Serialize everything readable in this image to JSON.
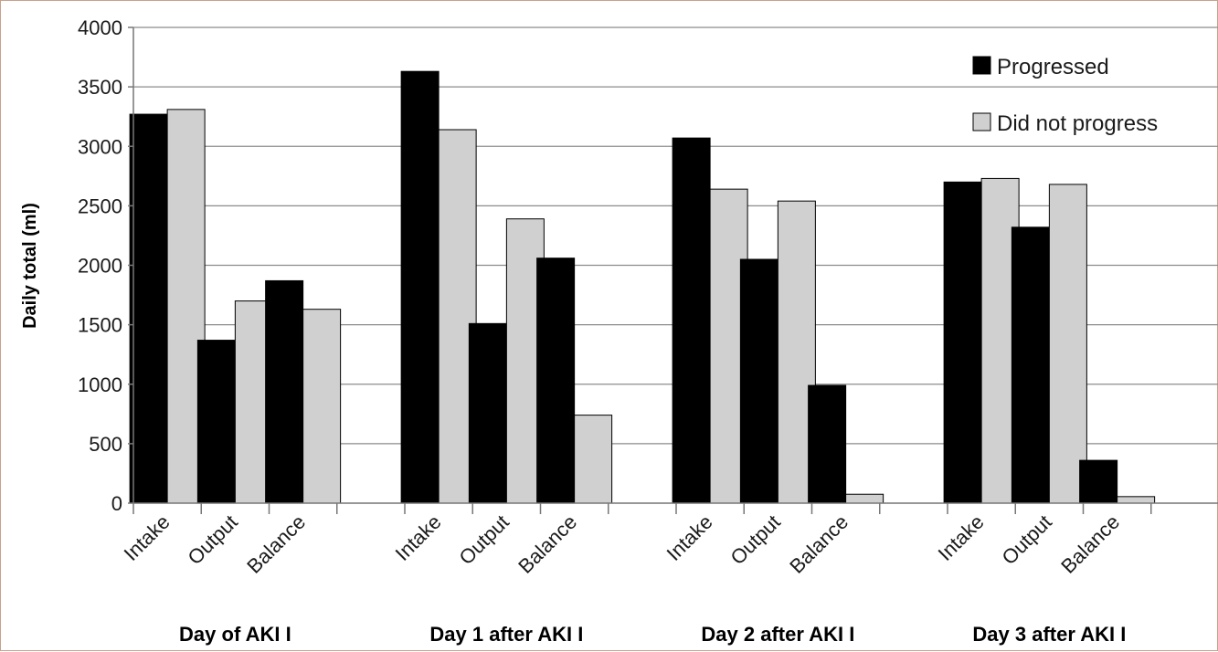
{
  "chart_data": {
    "type": "bar",
    "title": "",
    "xlabel": "",
    "ylabel": "Daily total (ml)",
    "ylim": [
      0,
      4000
    ],
    "yticks": [
      0,
      500,
      1000,
      1500,
      2000,
      2500,
      3000,
      3500,
      4000
    ],
    "grid": true,
    "legend_position": "top-right",
    "groups": [
      "Day of AKI I",
      "Day 1 after AKI I",
      "Day 2 after AKI I",
      "Day 3 after AKI I"
    ],
    "categories": [
      "Intake",
      "Output",
      "Balance"
    ],
    "series": [
      {
        "name": "Progressed",
        "color": "#000000",
        "values": [
          [
            3270,
            1370,
            1870
          ],
          [
            3630,
            1510,
            2060
          ],
          [
            3070,
            2050,
            990
          ],
          [
            2700,
            2320,
            360
          ]
        ]
      },
      {
        "name": "Did not progress",
        "color": "#d0d0d0",
        "values": [
          [
            3310,
            1700,
            1630
          ],
          [
            3140,
            2390,
            740
          ],
          [
            2640,
            2540,
            75
          ],
          [
            2730,
            2680,
            55
          ]
        ]
      }
    ]
  }
}
